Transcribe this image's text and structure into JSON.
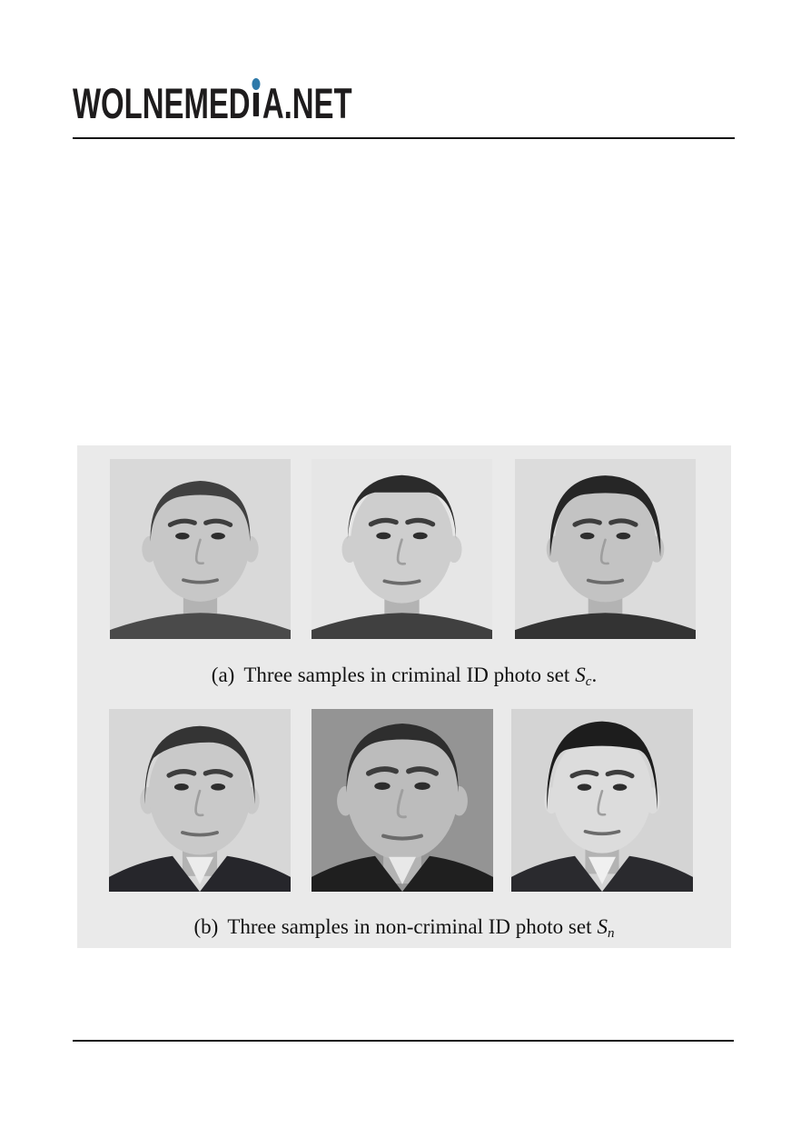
{
  "page": {
    "background": "#ffffff"
  },
  "header": {
    "logo": {
      "full_text": "WOLNEMEDIA.NET",
      "part_before_i": "WOLNEMED",
      "part_after_i": "A.NET",
      "text_color": "#1e1c1d",
      "dot_color": "#2e79a9"
    },
    "rule_color": "#161616"
  },
  "figure": {
    "panel_background": "#eaeaea",
    "caption_a": {
      "label": "(a)",
      "text": "Three samples in criminal ID photo set",
      "set_symbol": "S",
      "set_subscript": "c",
      "suffix": "."
    },
    "caption_b": {
      "label": "(b)",
      "text": "Three samples in non-criminal ID photo set",
      "set_symbol": "S",
      "set_subscript": "n",
      "suffix": ""
    },
    "rows": [
      {
        "name": "criminal-id-photo-set",
        "photos": [
          {
            "alt": "grayscale ID portrait, middle-aged man with short receding hair, criminal set sample 1",
            "bg": "#d9d9d9",
            "skin": "#c7c7c7",
            "hair": "receding",
            "hair_color": "#404040",
            "suit": "#4a4a4a",
            "shirt": "",
            "scale": 1.04
          },
          {
            "alt": "grayscale ID portrait, heavyset young man with short flat hair, criminal set sample 2",
            "bg": "#e6e6e6",
            "skin": "#cecece",
            "hair": "flat",
            "hair_color": "#2b2b2b",
            "suit": "#404040",
            "shirt": "",
            "scale": 1.07
          },
          {
            "alt": "grayscale ID portrait, man with fuller dark hair and dark jacket, criminal set sample 3",
            "bg": "#dcdcdc",
            "skin": "#c3c3c3",
            "hair": "full",
            "hair_color": "#262626",
            "suit": "#333333",
            "shirt": "",
            "scale": 1.05
          }
        ]
      },
      {
        "name": "non-criminal-id-photo-set",
        "photos": [
          {
            "alt": "grayscale ID portrait, man in dark suit with white shirt, non-criminal set sample 1",
            "bg": "#d7d7d7",
            "skin": "#c9c9c9",
            "hair": "side",
            "hair_color": "#343434",
            "suit": "#26262b",
            "shirt": "#ececec",
            "scale": 1.06
          },
          {
            "alt": "grayscale close-up ID portrait on darker gray background, man in dark suit and white shirt, non-criminal set sample 2",
            "bg": "#949494",
            "skin": "#bcbcbc",
            "hair": "receding",
            "hair_color": "#2e2e2e",
            "suit": "#1f1f1f",
            "shirt": "#e8e8e8",
            "scale": 1.16
          },
          {
            "alt": "grayscale ID portrait, young man with full dark hair, dark suit and white shirt, non-criminal set sample 3",
            "bg": "#d4d4d4",
            "skin": "#dcdcdc",
            "hair": "fringe",
            "hair_color": "#1d1d1d",
            "suit": "#2a2a2e",
            "shirt": "#f0f0f0",
            "scale": 1.03
          }
        ]
      }
    ]
  }
}
